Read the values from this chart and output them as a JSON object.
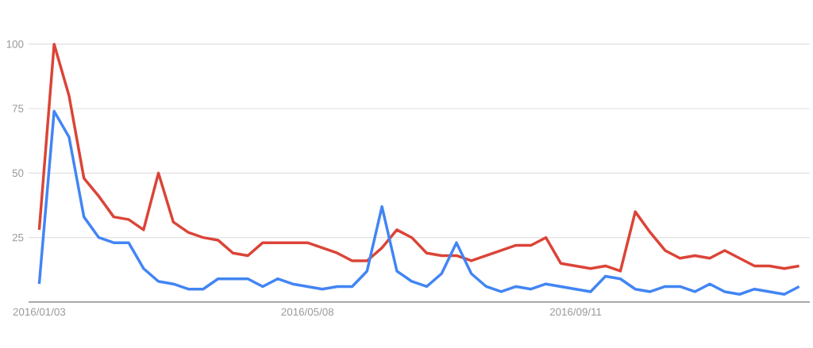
{
  "chart_data": {
    "type": "line",
    "x": [
      "2016-01-03",
      "2016-01-10",
      "2016-01-17",
      "2016-01-24",
      "2016-01-31",
      "2016-02-07",
      "2016-02-14",
      "2016-02-21",
      "2016-02-28",
      "2016-03-06",
      "2016-03-13",
      "2016-03-20",
      "2016-03-27",
      "2016-04-03",
      "2016-04-10",
      "2016-04-17",
      "2016-04-24",
      "2016-05-01",
      "2016-05-08",
      "2016-05-15",
      "2016-05-22",
      "2016-05-29",
      "2016-06-05",
      "2016-06-12",
      "2016-06-19",
      "2016-06-26",
      "2016-07-03",
      "2016-07-10",
      "2016-07-17",
      "2016-07-24",
      "2016-07-31",
      "2016-08-07",
      "2016-08-14",
      "2016-08-21",
      "2016-08-28",
      "2016-09-04",
      "2016-09-11",
      "2016-09-18",
      "2016-09-25",
      "2016-10-02",
      "2016-10-09",
      "2016-10-16",
      "2016-10-23",
      "2016-10-30",
      "2016-11-06",
      "2016-11-13",
      "2016-11-20",
      "2016-11-27",
      "2016-12-04",
      "2016-12-11",
      "2016-12-18",
      "2016-12-25"
    ],
    "series": [
      {
        "color": "#db4437",
        "values": [
          28,
          100,
          80,
          48,
          41,
          33,
          32,
          28,
          50,
          31,
          27,
          25,
          24,
          19,
          18,
          23,
          23,
          23,
          23,
          21,
          19,
          16,
          16,
          21,
          28,
          25,
          19,
          18,
          18,
          16,
          18,
          20,
          22,
          22,
          25,
          15,
          14,
          13,
          14,
          12,
          35,
          27,
          20,
          17,
          18,
          17,
          20,
          17,
          14,
          14,
          13,
          14
        ]
      },
      {
        "color": "#4285f4",
        "values": [
          7,
          74,
          64,
          33,
          25,
          23,
          23,
          13,
          8,
          7,
          5,
          5,
          9,
          9,
          9,
          6,
          9,
          7,
          6,
          5,
          6,
          6,
          12,
          37,
          12,
          8,
          6,
          11,
          23,
          11,
          6,
          4,
          6,
          5,
          7,
          6,
          5,
          4,
          10,
          9,
          5,
          4,
          6,
          6,
          4,
          7,
          4,
          3,
          5,
          4,
          3,
          6
        ]
      }
    ],
    "xlim": [
      "2015-12-29",
      "2016-12-30"
    ],
    "xticks": [
      {
        "value": "2016-01-03",
        "label": "2016/01/03"
      },
      {
        "value": "2016-05-08",
        "label": "2016/05/08"
      },
      {
        "value": "2016-09-11",
        "label": "2016/09/11"
      }
    ],
    "ylim": [
      0,
      100
    ],
    "yticks": [
      25,
      50,
      75,
      100
    ],
    "grid": "y"
  }
}
